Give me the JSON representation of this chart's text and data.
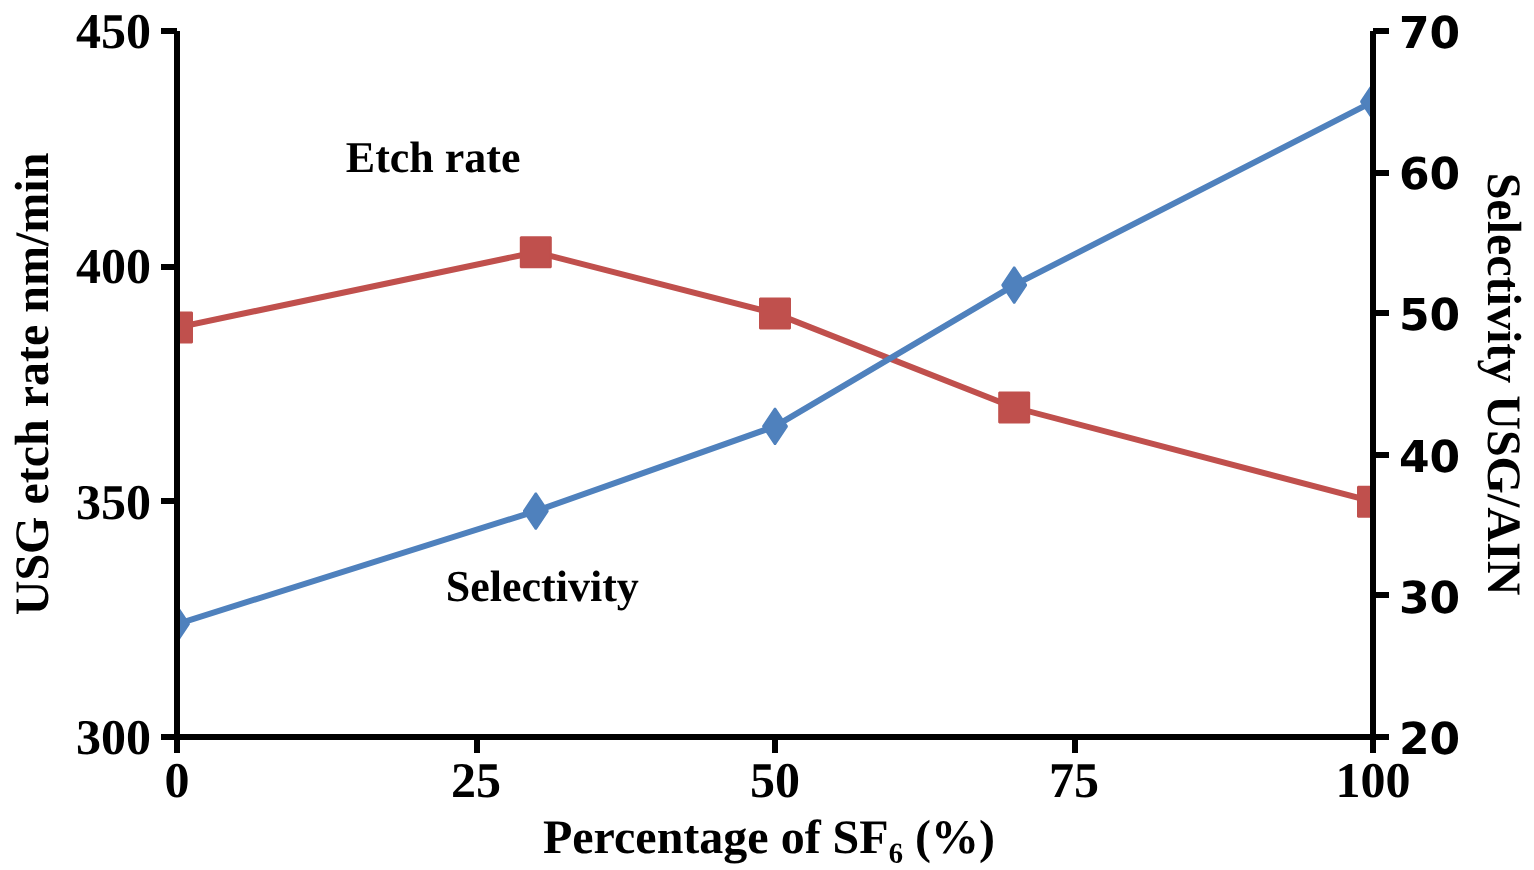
{
  "chart_data": {
    "type": "line",
    "xlabel": "Percentage of SF₆  (%)",
    "ylabel": "USG etch rate nm/min",
    "y2label": "Selectivity USG/AIN",
    "x": [
      0,
      30,
      50,
      70,
      100
    ],
    "xlim": [
      0,
      100
    ],
    "xticks": [
      0,
      25,
      50,
      75,
      100
    ],
    "ylim": [
      300,
      450
    ],
    "yticks": [
      300,
      350,
      400,
      450
    ],
    "y2lim": [
      20,
      70
    ],
    "y2ticks": [
      20,
      30,
      40,
      50,
      60,
      70
    ],
    "grid": false,
    "legend": false,
    "series": [
      {
        "name": "Etch rate",
        "color": "#c0504d",
        "marker": "square",
        "values": [
          387,
          403,
          390,
          370,
          350
        ]
      },
      {
        "name": "Selectivity",
        "color": "#4f81bd",
        "marker": "diamond",
        "axis": "y2",
        "values": [
          28,
          36,
          42,
          52,
          65
        ]
      }
    ]
  }
}
